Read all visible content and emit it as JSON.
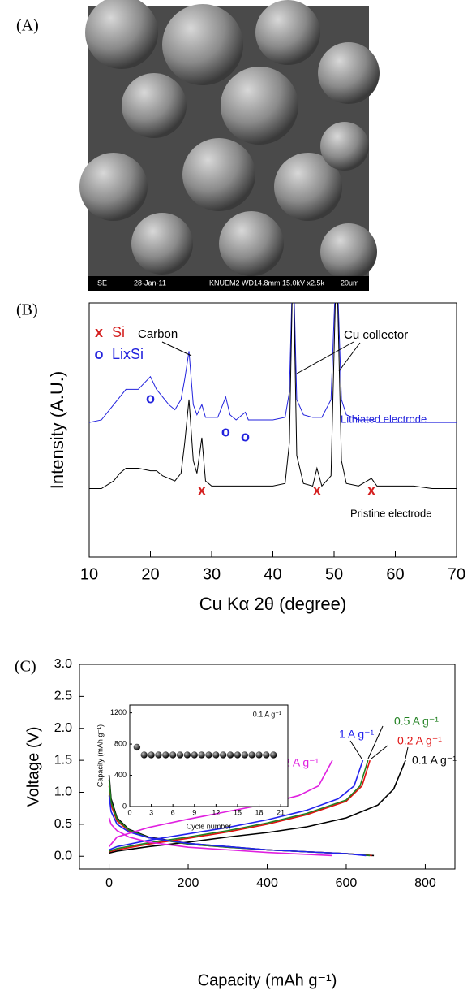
{
  "panel_labels": [
    "(A)",
    "(B)",
    "(C)"
  ],
  "sem_image": {
    "info_bar": [
      "SE",
      "28-Jan-11",
      "KNUEM2 WD14.8mm 15.0kV x2.5k",
      "20um"
    ]
  },
  "chart_data": [
    {
      "type": "line",
      "x_label": "Cu Kα 2θ (degree)",
      "y_label": "Intensity (A.U.)",
      "xlim": [
        10,
        70
      ],
      "xticks": [
        10,
        20,
        30,
        40,
        50,
        60,
        70
      ],
      "ylim": [
        0,
        100
      ],
      "x": [
        10,
        12,
        14,
        15,
        16,
        18,
        20,
        21,
        22,
        23,
        24,
        25,
        25.6,
        26.3,
        27,
        27.6,
        28.4,
        29,
        30,
        31,
        32.3,
        33,
        34,
        35.5,
        36,
        38,
        40,
        42,
        42.7,
        43.3,
        43.9,
        45,
        46.5,
        47.2,
        48,
        49.5,
        50.4,
        51.2,
        52,
        54,
        56.1,
        57,
        60,
        63,
        66,
        70
      ],
      "series": [
        {
          "name": "Lithiated electrode",
          "color": "#2222dd",
          "values": [
            53,
            54,
            60,
            63,
            66,
            66,
            71,
            66,
            63,
            60,
            58,
            62,
            70,
            81,
            60,
            56,
            60,
            55,
            55,
            55,
            63,
            56,
            54,
            57,
            54,
            54,
            54,
            55,
            65,
            120,
            62,
            56,
            55,
            55,
            55,
            62,
            120,
            62,
            56,
            54,
            54,
            53,
            53,
            53,
            53,
            53
          ]
        },
        {
          "name": "Pristine electrode",
          "color": "#000000",
          "values": [
            27,
            27,
            30,
            33,
            35,
            35,
            34,
            34,
            32,
            31,
            30,
            33,
            45,
            62,
            38,
            33,
            47,
            30,
            28,
            28,
            28,
            28,
            28,
            28,
            28,
            28,
            28,
            29,
            45,
            120,
            40,
            29,
            28,
            35,
            28,
            32,
            120,
            38,
            29,
            28,
            31,
            28,
            28,
            28,
            27,
            27
          ]
        }
      ],
      "markers": [
        {
          "name": "Si",
          "symbol": "x",
          "color": "#d42020",
          "x": [
            28.4,
            47.2,
            56.1
          ],
          "y": [
            26,
            26,
            26
          ]
        },
        {
          "name": "LixSi",
          "symbol": "o",
          "color": "#2222dd",
          "x": [
            20,
            32.3,
            35.5
          ],
          "y": [
            62,
            49,
            47
          ]
        }
      ],
      "annotations": [
        "Carbon",
        "Cu collector"
      ]
    },
    {
      "type": "line",
      "x_label": "Capacity (mAh g⁻¹)",
      "y_label": "Voltage (V)",
      "xlim": [
        -75,
        875
      ],
      "xticks": [
        0,
        200,
        400,
        600,
        800
      ],
      "ylim": [
        -0.2,
        3.0
      ],
      "yticks": [
        {
          "value": 0,
          "label": "0.0"
        },
        0.5,
        {
          "value": 1,
          "label": "1.0"
        },
        1.5,
        {
          "value": 2,
          "label": "2.0"
        },
        2.5,
        {
          "value": 3,
          "label": "3.0"
        }
      ],
      "series": [
        {
          "name": "0.1 A g⁻¹",
          "color": "#000000",
          "x": [
            0,
            5,
            20,
            50,
            100,
            200,
            300,
            400,
            500,
            600,
            670,
            null,
            0,
            20,
            100,
            200,
            300,
            400,
            500,
            600,
            680,
            720,
            750
          ],
          "values": [
            1.27,
            0.9,
            0.6,
            0.42,
            0.3,
            0.2,
            0.15,
            0.1,
            0.07,
            0.04,
            0.01,
            null,
            0.05,
            0.08,
            0.15,
            0.22,
            0.3,
            0.37,
            0.46,
            0.6,
            0.8,
            1.05,
            1.5
          ]
        },
        {
          "name": "0.2 A g⁻¹",
          "color": "#e01010",
          "x": [
            0,
            5,
            20,
            50,
            100,
            200,
            300,
            400,
            500,
            600,
            665,
            null,
            0,
            20,
            100,
            200,
            300,
            400,
            500,
            600,
            640,
            660
          ],
          "values": [
            1.1,
            0.8,
            0.55,
            0.4,
            0.29,
            0.19,
            0.14,
            0.1,
            0.07,
            0.04,
            0.01,
            null,
            0.07,
            0.1,
            0.19,
            0.28,
            0.38,
            0.5,
            0.65,
            0.86,
            1.1,
            1.5
          ]
        },
        {
          "name": "0.5 A g⁻¹",
          "color": "#208020",
          "x": [
            0,
            5,
            20,
            50,
            100,
            200,
            300,
            400,
            500,
            600,
            660,
            null,
            0,
            20,
            100,
            200,
            300,
            400,
            500,
            600,
            635,
            655
          ],
          "values": [
            1.2,
            0.85,
            0.58,
            0.41,
            0.29,
            0.19,
            0.14,
            0.1,
            0.07,
            0.04,
            0.01,
            null,
            0.08,
            0.12,
            0.21,
            0.3,
            0.4,
            0.52,
            0.67,
            0.88,
            1.1,
            1.5
          ]
        },
        {
          "name": "1 A g⁻¹",
          "color": "#2222ee",
          "x": [
            0,
            5,
            20,
            50,
            100,
            200,
            300,
            400,
            500,
            600,
            650,
            null,
            0,
            20,
            100,
            200,
            300,
            400,
            500,
            580,
            620,
            642
          ],
          "values": [
            0.95,
            0.7,
            0.5,
            0.38,
            0.29,
            0.2,
            0.15,
            0.1,
            0.07,
            0.04,
            0.01,
            null,
            0.1,
            0.15,
            0.25,
            0.35,
            0.45,
            0.57,
            0.72,
            0.9,
            1.1,
            1.5
          ]
        },
        {
          "name": "2 A g⁻¹",
          "color": "#e020e0",
          "x": [
            0,
            5,
            20,
            50,
            100,
            200,
            300,
            400,
            500,
            565,
            null,
            0,
            20,
            100,
            200,
            300,
            400,
            480,
            530,
            565
          ],
          "values": [
            0.6,
            0.5,
            0.4,
            0.3,
            0.22,
            0.14,
            0.1,
            0.06,
            0.03,
            0.01,
            null,
            0.15,
            0.3,
            0.45,
            0.58,
            0.7,
            0.82,
            0.95,
            1.1,
            1.5
          ]
        }
      ]
    },
    {
      "type": "scatter",
      "title": "0.1 A g⁻¹",
      "x_label": "Cycle number",
      "y_label": "Capacity (mAh g⁻¹)",
      "xlim": [
        0,
        22
      ],
      "xticks": [
        0,
        3,
        6,
        9,
        12,
        15,
        18,
        21
      ],
      "ylim": [
        0,
        1300
      ],
      "yticks": [
        0,
        400,
        800,
        1200
      ],
      "color": "#111111",
      "x": [
        1,
        2,
        3,
        4,
        5,
        6,
        7,
        8,
        9,
        10,
        11,
        12,
        13,
        14,
        15,
        16,
        17,
        18,
        19,
        20
      ],
      "values": [
        760,
        660,
        660,
        660,
        660,
        660,
        660,
        660,
        660,
        660,
        660,
        660,
        660,
        660,
        660,
        660,
        660,
        660,
        660,
        660
      ]
    }
  ]
}
